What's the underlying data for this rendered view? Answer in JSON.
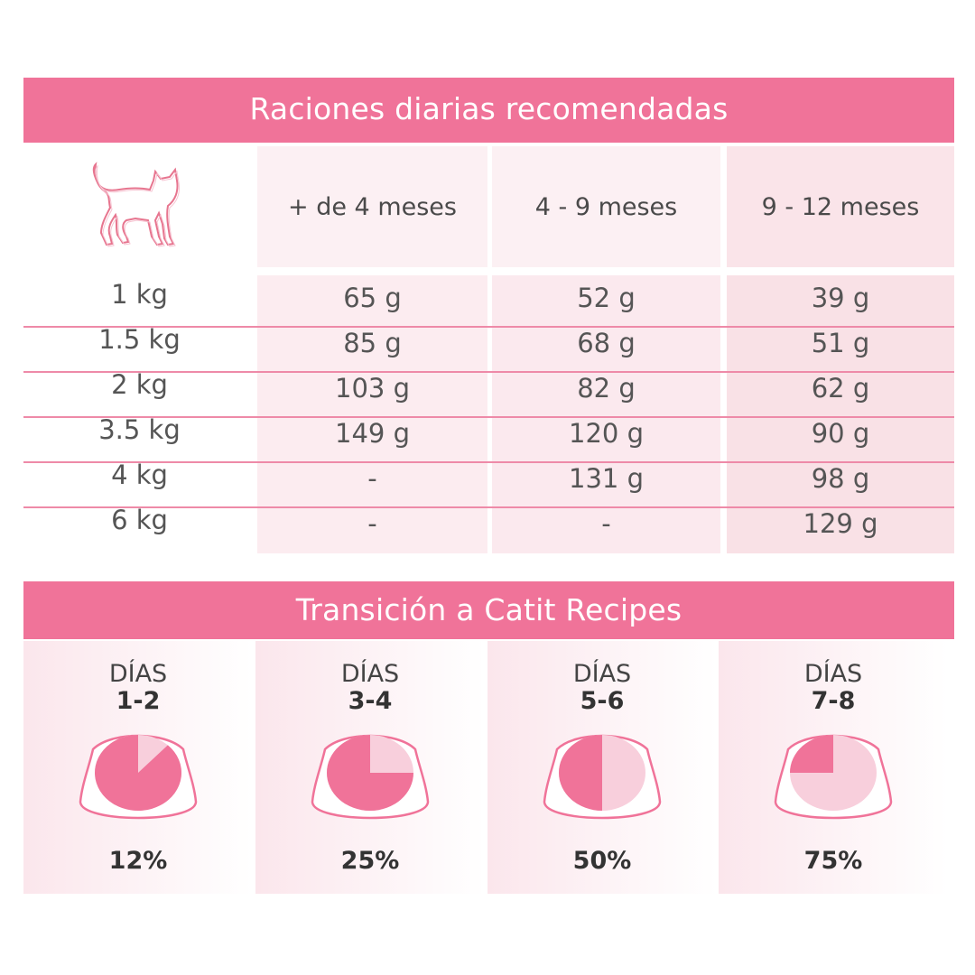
{
  "rations": {
    "title": "Raciones diarias recomendadas",
    "icon": "cat-icon",
    "columns": [
      "+ de 4 meses",
      "4 - 9 meses",
      "9 - 12 meses"
    ],
    "rows": [
      {
        "weight": "1 kg",
        "values": [
          "65 g",
          "52 g",
          "39 g"
        ]
      },
      {
        "weight": "1.5 kg",
        "values": [
          "85 g",
          "68 g",
          "51 g"
        ]
      },
      {
        "weight": "2 kg",
        "values": [
          "103 g",
          "82 g",
          "62 g"
        ]
      },
      {
        "weight": "3.5 kg",
        "values": [
          "149 g",
          "120 g",
          "90 g"
        ]
      },
      {
        "weight": "4 kg",
        "values": [
          "-",
          "131 g",
          "98 g"
        ]
      },
      {
        "weight": "6 kg",
        "values": [
          "-",
          "-",
          "129 g"
        ]
      }
    ]
  },
  "transition": {
    "title": "Transición a Catit Recipes",
    "steps": [
      {
        "label": "DÍAS",
        "range": "1-2",
        "percent_label": "12%",
        "percent": 12
      },
      {
        "label": "DÍAS",
        "range": "3-4",
        "percent_label": "25%",
        "percent": 25
      },
      {
        "label": "DÍAS",
        "range": "5-6",
        "percent_label": "50%",
        "percent": 50
      },
      {
        "label": "DÍAS",
        "range": "7-8",
        "percent_label": "75%",
        "percent": 75
      }
    ]
  },
  "colors": {
    "accent": "#f07399",
    "food_old": "#f07399",
    "food_new": "#f8cfdc",
    "text": "#4a4a4a"
  }
}
